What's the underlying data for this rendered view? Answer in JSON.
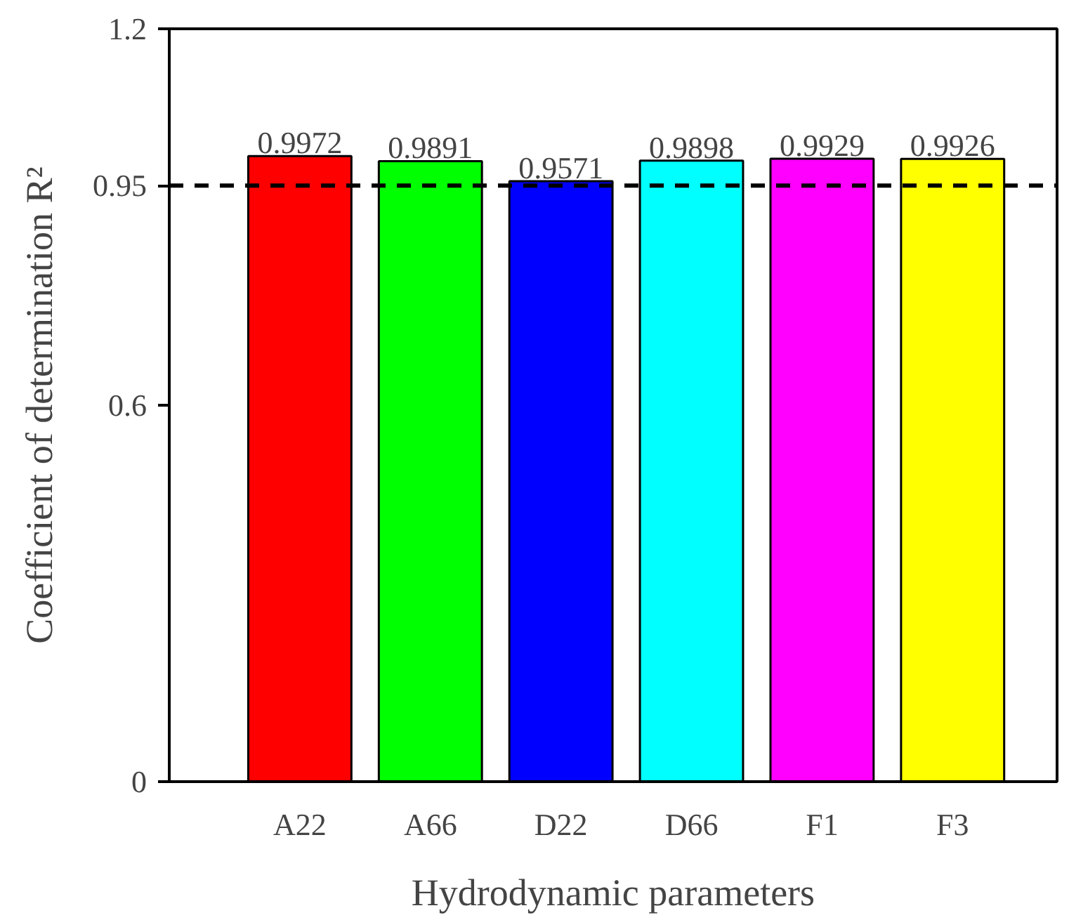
{
  "chart_data": {
    "type": "bar",
    "xlabel": "Hydrodynamic parameters",
    "ylabel": "Coefficient of determination R²",
    "categories": [
      "A22",
      "A66",
      "D22",
      "D66",
      "F1",
      "F3"
    ],
    "values": [
      0.9972,
      0.9891,
      0.9571,
      0.9898,
      0.9929,
      0.9926
    ],
    "colors": [
      "#ff0000",
      "#00ff00",
      "#0000ff",
      "#00ffff",
      "#ff00ff",
      "#ffff00"
    ],
    "ylim": [
      0,
      1.2
    ],
    "yticks": [
      0,
      0.6,
      0.95,
      1.2
    ],
    "data_labels": true,
    "grid": false,
    "ref_lines": [
      {
        "axis": "y",
        "value": 0.95,
        "color": "#000000",
        "line_style": "dashed"
      }
    ]
  }
}
